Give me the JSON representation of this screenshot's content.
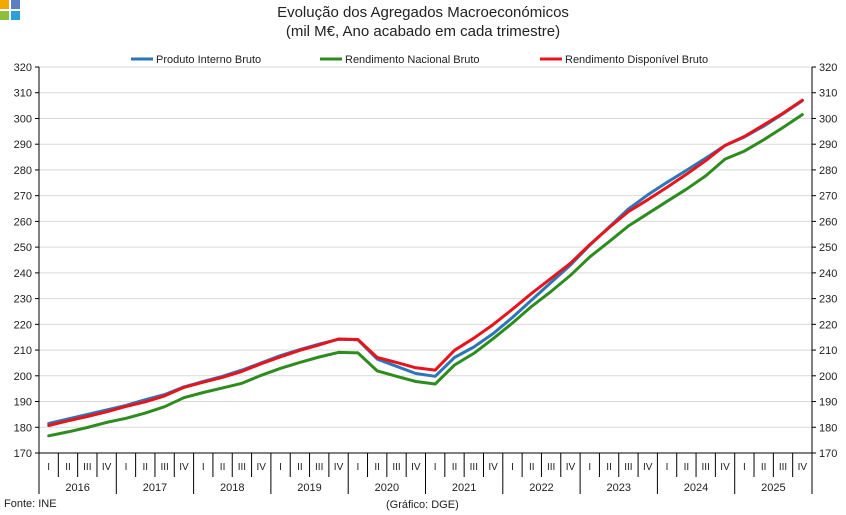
{
  "logo": {
    "colors": [
      "#f2a900",
      "#5b7ec4",
      "#8bbf3c",
      "#2aa1d8"
    ]
  },
  "chart_data": {
    "type": "line",
    "title": "Evolução dos Agregados Macroeconómicos",
    "subtitle": "(mil M€, Ano acabado em cada trimestre)",
    "ylim": [
      170,
      320
    ],
    "yticks": [
      "320",
      "310",
      "300",
      "290",
      "280",
      "270",
      "260",
      "250",
      "240",
      "230",
      "220",
      "210",
      "200",
      "190",
      "180",
      "170"
    ],
    "grid": true,
    "legend_position": "top",
    "quarters": [
      "I",
      "II",
      "III",
      "IV"
    ],
    "years": [
      "2016",
      "2017",
      "2018",
      "2019",
      "2020",
      "2021",
      "2022",
      "2023",
      "2024",
      "2025"
    ],
    "series": [
      {
        "name": "Produto Interno Bruto",
        "color": "#2e75b6",
        "values": [
          181.5,
          183.2,
          185,
          186.7,
          188.5,
          190.7,
          192.7,
          195.7,
          197.8,
          199.8,
          202.2,
          205,
          207.9,
          210.2,
          212.3,
          214.2,
          214,
          206.5,
          203.7,
          200.9,
          199.8,
          207.1,
          211.2,
          216.4,
          222.7,
          229.5,
          236.3,
          243,
          250.8,
          257.8,
          264.8,
          270.3,
          275.2,
          279.8,
          284.6,
          289.5,
          292.8,
          297,
          301.8,
          306.9
        ]
      },
      {
        "name": "Rendimento Nacional Bruto",
        "color": "#2e8b1e",
        "values": [
          176.7,
          178.2,
          179.9,
          181.9,
          183.5,
          185.5,
          188,
          191.5,
          193.5,
          195.3,
          197.1,
          200.2,
          202.9,
          205.2,
          207.3,
          209.1,
          208.9,
          201.9,
          199.8,
          197.8,
          196.8,
          204.2,
          208.7,
          214.4,
          220.5,
          227,
          232.8,
          239,
          246.2,
          252.1,
          258.2,
          263,
          267.8,
          272.5,
          277.7,
          284.2,
          287.3,
          291.7,
          296.5,
          301.5
        ]
      },
      {
        "name": "Rendimento Disponível Bruto",
        "color": "#e8141c",
        "values": [
          180.7,
          182.5,
          184.2,
          186,
          188.1,
          189.9,
          192.2,
          195.5,
          197.5,
          199.4,
          201.7,
          204.7,
          207.4,
          209.9,
          212,
          214.3,
          214.1,
          207.1,
          205.2,
          203.1,
          202.2,
          209.9,
          214.6,
          219.9,
          225.9,
          232.1,
          237.9,
          243.7,
          251,
          257.6,
          263.8,
          268.4,
          273.3,
          278.3,
          283.6,
          289.5,
          293,
          297.5,
          302,
          307.1
        ]
      }
    ]
  },
  "footer": {
    "source": "Fonte: INE",
    "credit": "(Gráfico: DGE)"
  }
}
